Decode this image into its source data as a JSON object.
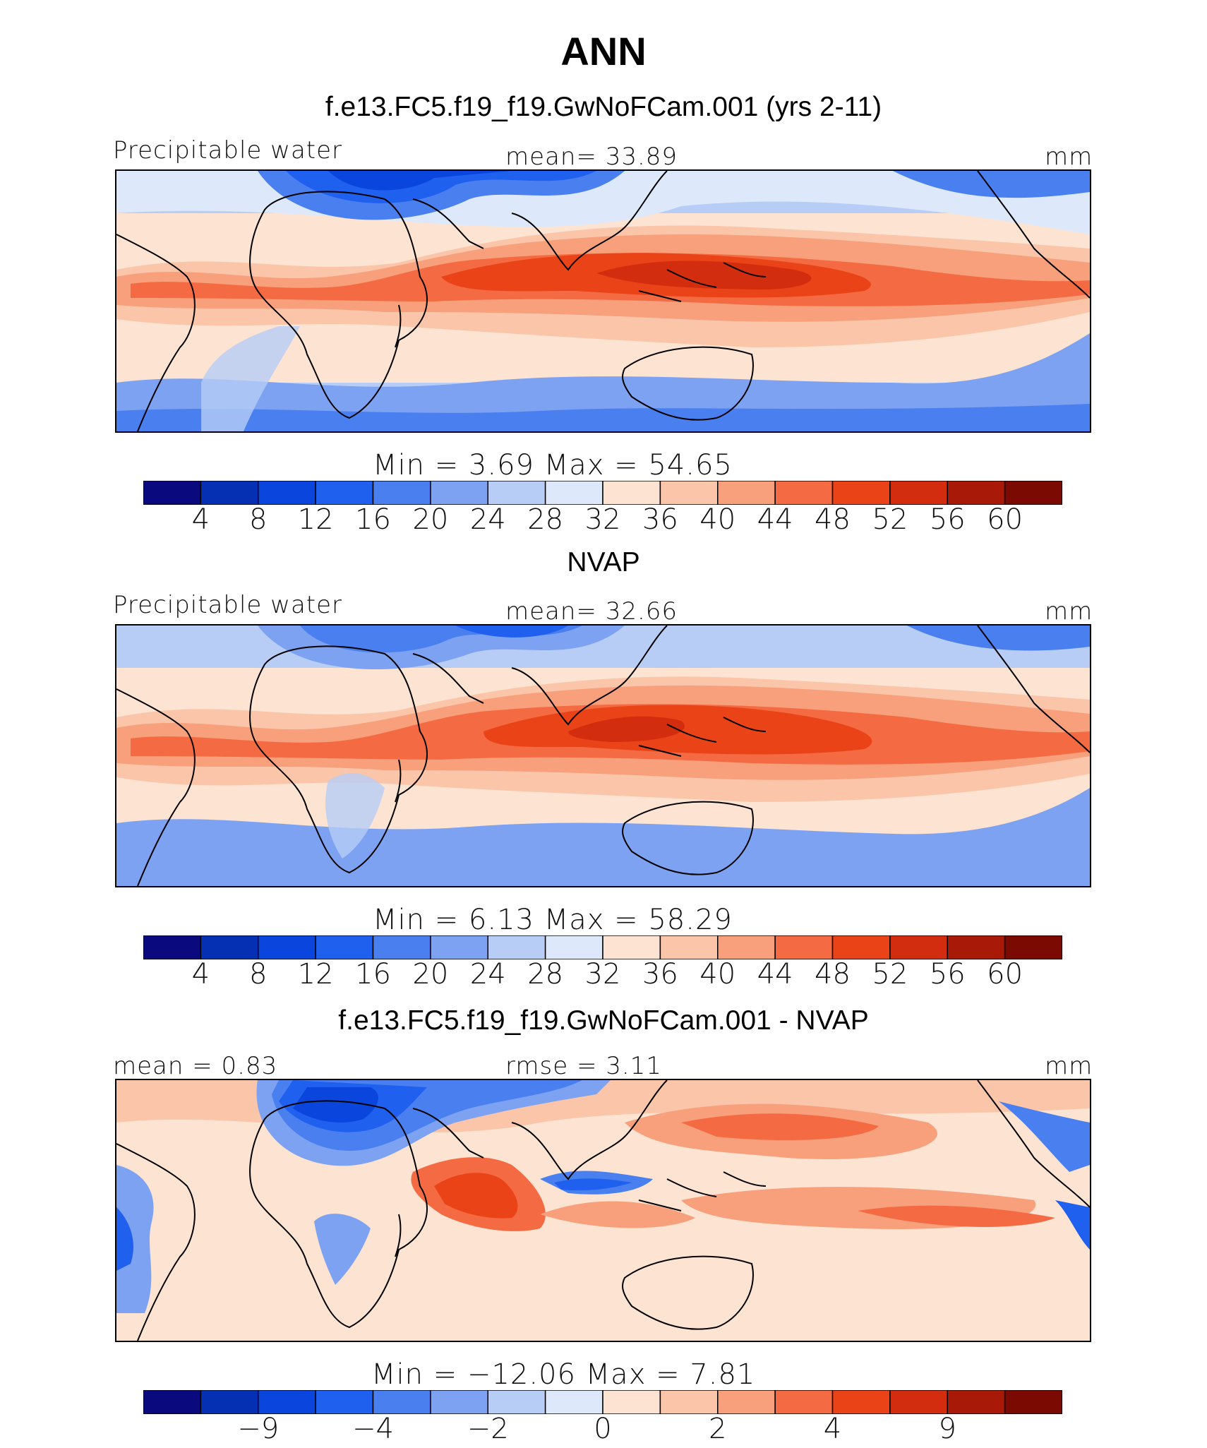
{
  "title": "ANN",
  "colors": {
    "palette": [
      "#0a0a7e",
      "#0630b4",
      "#0a46dd",
      "#2060ee",
      "#4a7ff0",
      "#7ea2f2",
      "#b7cdf6",
      "#dde9fb",
      "#fde3d2",
      "#fbc5a9",
      "#f89f7b",
      "#f46b43",
      "#ea4318",
      "#d22d0e",
      "#a81a07",
      "#7b0a03"
    ],
    "coast": "#000000"
  },
  "chart_data": [
    {
      "type": "heatmap",
      "title": "f.e13.FC5.f19_f19.GwNoFCam.001 (yrs 2-11)",
      "left_label": "Precipitable water",
      "center_label": "mean=   33.89",
      "right_label": "mm",
      "minmax_label": "Min  =     3.69  Max  =    54.65",
      "variable": "Precipitable water",
      "units": "mm",
      "mean": 33.89,
      "min": 3.69,
      "max": 54.65,
      "colorbar_ticks": [
        "4",
        "8",
        "12",
        "16",
        "20",
        "24",
        "28",
        "32",
        "36",
        "40",
        "44",
        "48",
        "52",
        "56",
        "60"
      ],
      "levels": [
        4,
        8,
        12,
        16,
        20,
        24,
        28,
        32,
        36,
        40,
        44,
        48,
        52,
        56,
        60
      ]
    },
    {
      "type": "heatmap",
      "title": "NVAP",
      "left_label": "Precipitable water",
      "center_label": "mean=   32.66",
      "right_label": "mm",
      "minmax_label": "Min  =     6.13  Max  =    58.29",
      "variable": "Precipitable water",
      "units": "mm",
      "mean": 32.66,
      "min": 6.13,
      "max": 58.29,
      "colorbar_ticks": [
        "4",
        "8",
        "12",
        "16",
        "20",
        "24",
        "28",
        "32",
        "36",
        "40",
        "44",
        "48",
        "52",
        "56",
        "60"
      ],
      "levels": [
        4,
        8,
        12,
        16,
        20,
        24,
        28,
        32,
        36,
        40,
        44,
        48,
        52,
        56,
        60
      ]
    },
    {
      "type": "heatmap",
      "title": "f.e13.FC5.f19_f19.GwNoFCam.001 - NVAP",
      "left_label": "mean =    0.83",
      "center_label": "rmse =    3.11",
      "right_label": "mm",
      "minmax_label": "Min  = −12.06  Max  =      7.81",
      "units": "mm",
      "mean": 0.83,
      "rmse": 3.11,
      "min": -12.06,
      "max": 7.81,
      "colorbar_ticks": [
        "−9",
        "−4",
        "−2",
        "0",
        "2",
        "4",
        "9"
      ],
      "levels": [
        -9,
        -6,
        -4,
        -3,
        -2,
        -1,
        0,
        1,
        2,
        3,
        4,
        6,
        9
      ]
    }
  ]
}
